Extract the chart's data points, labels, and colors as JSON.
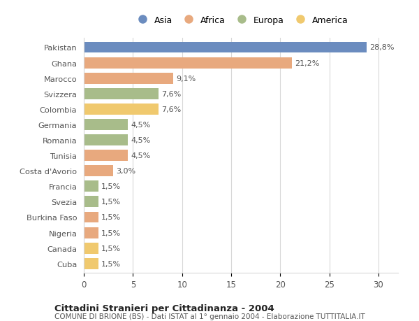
{
  "categories": [
    "Pakistan",
    "Ghana",
    "Marocco",
    "Svizzera",
    "Colombia",
    "Germania",
    "Romania",
    "Tunisia",
    "Costa d'Avorio",
    "Francia",
    "Svezia",
    "Burkina Faso",
    "Nigeria",
    "Canada",
    "Cuba"
  ],
  "values": [
    28.8,
    21.2,
    9.1,
    7.6,
    7.6,
    4.5,
    4.5,
    4.5,
    3.0,
    1.5,
    1.5,
    1.5,
    1.5,
    1.5,
    1.5
  ],
  "labels": [
    "28,8%",
    "21,2%",
    "9,1%",
    "7,6%",
    "7,6%",
    "4,5%",
    "4,5%",
    "4,5%",
    "3,0%",
    "1,5%",
    "1,5%",
    "1,5%",
    "1,5%",
    "1,5%",
    "1,5%"
  ],
  "continents": [
    "Asia",
    "Africa",
    "Africa",
    "Europa",
    "America",
    "Europa",
    "Europa",
    "Africa",
    "Africa",
    "Europa",
    "Europa",
    "Africa",
    "Africa",
    "America",
    "America"
  ],
  "colors": {
    "Asia": "#6b8cbf",
    "Africa": "#e8a97e",
    "Europa": "#a8bc8a",
    "America": "#f0c96e"
  },
  "legend_labels": [
    "Asia",
    "Africa",
    "Europa",
    "America"
  ],
  "legend_colors": [
    "#6b8cbf",
    "#e8a97e",
    "#a8bc8a",
    "#f0c96e"
  ],
  "xlim": [
    0,
    32
  ],
  "xticks": [
    0,
    5,
    10,
    15,
    20,
    25,
    30
  ],
  "title": "Cittadini Stranieri per Cittadinanza - 2004",
  "subtitle": "COMUNE DI BRIONE (BS) - Dati ISTAT al 1° gennaio 2004 - Elaborazione TUTTITALIA.IT",
  "bg_color": "#ffffff",
  "grid_color": "#d8d8d8",
  "bar_height": 0.72
}
